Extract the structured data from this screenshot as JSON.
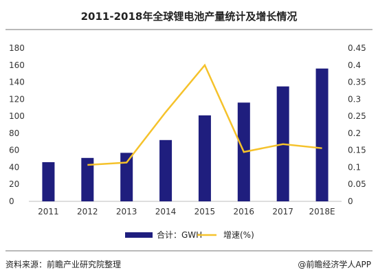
{
  "title": "2011-2018年全球锂电池产量统计及增长情况",
  "source": "资料来源：前瞻产业研究院整理",
  "brand": "@前瞻经济学人APP",
  "colors": {
    "bar": "#1f1e7e",
    "line": "#f5c22b"
  },
  "chart_data": {
    "type": "bar",
    "categories": [
      "2011",
      "2012",
      "2013",
      "2014",
      "2015",
      "2016",
      "2017",
      "2018E"
    ],
    "ylim": [
      0,
      180
    ],
    "y_ticks": [
      "180",
      "160",
      "140",
      "120",
      "100",
      "80",
      "60",
      "40",
      "20",
      "0"
    ],
    "y2lim": [
      0,
      0.45
    ],
    "y2_ticks": [
      "0.45",
      "0.4",
      "0.35",
      "0.3",
      "0.25",
      "0.2",
      "0.15",
      "0.1",
      "0.05",
      "0"
    ],
    "series": [
      {
        "name": "合计：GWH",
        "type": "bar",
        "axis": "left",
        "values": [
          46,
          51,
          57,
          72,
          101,
          116,
          135,
          156
        ]
      },
      {
        "name": "增速(%)",
        "type": "line",
        "axis": "right",
        "values": [
          null,
          0.107,
          0.114,
          0.262,
          0.4,
          0.145,
          0.168,
          0.156
        ]
      }
    ]
  }
}
